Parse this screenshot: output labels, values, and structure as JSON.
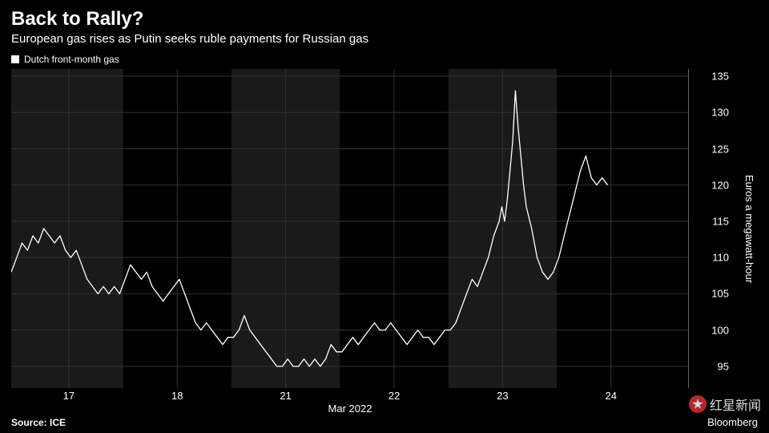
{
  "header": {
    "title": "Back to Rally?",
    "subtitle": "European gas rises as Putin seeks ruble payments for Russian gas"
  },
  "legend": {
    "series_label": "Dutch front-month gas",
    "marker_color": "#ffffff"
  },
  "chart": {
    "type": "line",
    "background_color": "#000000",
    "alt_band_color": "#1a1a1a",
    "grid_color": "#333333",
    "line_color": "#ffffff",
    "line_width": 1.3,
    "ylim": [
      92,
      136
    ],
    "yticks": [
      95,
      100,
      105,
      110,
      115,
      120,
      125,
      130,
      135
    ],
    "ylabel": "Euros a megawatt-hour",
    "xlabel": "Mar 2022",
    "xticks": [
      {
        "pos": 0.085,
        "label": "17"
      },
      {
        "pos": 0.245,
        "label": "18"
      },
      {
        "pos": 0.405,
        "label": "21"
      },
      {
        "pos": 0.565,
        "label": "22"
      },
      {
        "pos": 0.725,
        "label": "23"
      },
      {
        "pos": 0.885,
        "label": "24"
      }
    ],
    "alt_bands": [
      {
        "start": 0.0,
        "end": 0.165
      },
      {
        "start": 0.325,
        "end": 0.485
      },
      {
        "start": 0.645,
        "end": 0.805
      }
    ],
    "data": [
      [
        0.0,
        108
      ],
      [
        0.008,
        110
      ],
      [
        0.016,
        112
      ],
      [
        0.024,
        111
      ],
      [
        0.032,
        113
      ],
      [
        0.04,
        112
      ],
      [
        0.048,
        114
      ],
      [
        0.056,
        113
      ],
      [
        0.064,
        112
      ],
      [
        0.072,
        113
      ],
      [
        0.08,
        111
      ],
      [
        0.088,
        110
      ],
      [
        0.096,
        111
      ],
      [
        0.104,
        109
      ],
      [
        0.112,
        107
      ],
      [
        0.12,
        106
      ],
      [
        0.128,
        105
      ],
      [
        0.136,
        106
      ],
      [
        0.144,
        105
      ],
      [
        0.152,
        106
      ],
      [
        0.16,
        105
      ],
      [
        0.168,
        107
      ],
      [
        0.176,
        109
      ],
      [
        0.184,
        108
      ],
      [
        0.192,
        107
      ],
      [
        0.2,
        108
      ],
      [
        0.208,
        106
      ],
      [
        0.216,
        105
      ],
      [
        0.224,
        104
      ],
      [
        0.232,
        105
      ],
      [
        0.24,
        106
      ],
      [
        0.248,
        107
      ],
      [
        0.256,
        105
      ],
      [
        0.264,
        103
      ],
      [
        0.272,
        101
      ],
      [
        0.28,
        100
      ],
      [
        0.288,
        101
      ],
      [
        0.296,
        100
      ],
      [
        0.304,
        99
      ],
      [
        0.312,
        98
      ],
      [
        0.32,
        99
      ],
      [
        0.328,
        99
      ],
      [
        0.336,
        100
      ],
      [
        0.344,
        102
      ],
      [
        0.352,
        100
      ],
      [
        0.36,
        99
      ],
      [
        0.368,
        98
      ],
      [
        0.376,
        97
      ],
      [
        0.384,
        96
      ],
      [
        0.392,
        95
      ],
      [
        0.4,
        95
      ],
      [
        0.408,
        96
      ],
      [
        0.416,
        95
      ],
      [
        0.424,
        95
      ],
      [
        0.432,
        96
      ],
      [
        0.44,
        95
      ],
      [
        0.448,
        96
      ],
      [
        0.456,
        95
      ],
      [
        0.464,
        96
      ],
      [
        0.472,
        98
      ],
      [
        0.48,
        97
      ],
      [
        0.488,
        97
      ],
      [
        0.496,
        98
      ],
      [
        0.504,
        99
      ],
      [
        0.512,
        98
      ],
      [
        0.52,
        99
      ],
      [
        0.528,
        100
      ],
      [
        0.536,
        101
      ],
      [
        0.544,
        100
      ],
      [
        0.552,
        100
      ],
      [
        0.56,
        101
      ],
      [
        0.568,
        100
      ],
      [
        0.576,
        99
      ],
      [
        0.584,
        98
      ],
      [
        0.592,
        99
      ],
      [
        0.6,
        100
      ],
      [
        0.608,
        99
      ],
      [
        0.616,
        99
      ],
      [
        0.624,
        98
      ],
      [
        0.632,
        99
      ],
      [
        0.64,
        100
      ],
      [
        0.648,
        100
      ],
      [
        0.656,
        101
      ],
      [
        0.664,
        103
      ],
      [
        0.672,
        105
      ],
      [
        0.68,
        107
      ],
      [
        0.688,
        106
      ],
      [
        0.696,
        108
      ],
      [
        0.704,
        110
      ],
      [
        0.712,
        113
      ],
      [
        0.72,
        115
      ],
      [
        0.724,
        117
      ],
      [
        0.728,
        115
      ],
      [
        0.732,
        118
      ],
      [
        0.736,
        122
      ],
      [
        0.74,
        126
      ],
      [
        0.744,
        133
      ],
      [
        0.748,
        128
      ],
      [
        0.752,
        124
      ],
      [
        0.756,
        120
      ],
      [
        0.76,
        117
      ],
      [
        0.768,
        114
      ],
      [
        0.776,
        110
      ],
      [
        0.784,
        108
      ],
      [
        0.792,
        107
      ],
      [
        0.8,
        108
      ],
      [
        0.808,
        110
      ],
      [
        0.816,
        113
      ],
      [
        0.824,
        116
      ],
      [
        0.832,
        119
      ],
      [
        0.84,
        122
      ],
      [
        0.848,
        124
      ],
      [
        0.856,
        121
      ],
      [
        0.864,
        120
      ],
      [
        0.872,
        121
      ],
      [
        0.88,
        120
      ]
    ]
  },
  "footer": {
    "source": "Source: ICE",
    "brand": "Bloomberg"
  },
  "watermark": {
    "text": "红星新闻",
    "icon_color": "#d53030"
  }
}
